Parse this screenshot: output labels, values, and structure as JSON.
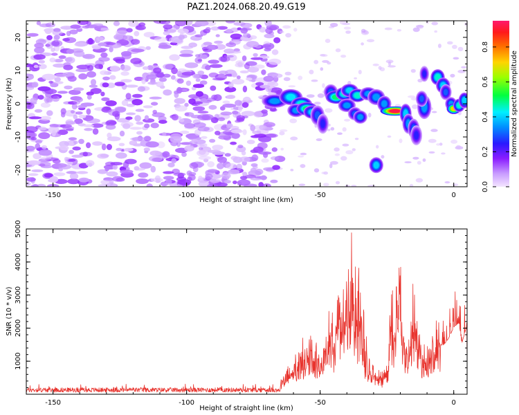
{
  "title": "PAZ1.2024.068.20.49.G19",
  "chart_data": [
    {
      "type": "heatmap",
      "xlabel": "Height of straight line (km)",
      "ylabel": "Frequency (Hz)",
      "xlim": [
        -160,
        5
      ],
      "ylim": [
        -25,
        25
      ],
      "xticks": [
        -150,
        -100,
        -50,
        0
      ],
      "yticks": [
        -20,
        -10,
        0,
        10,
        20
      ],
      "colorbar": {
        "label": "Normalized spectral amplitude",
        "ticks": [
          "0.0",
          "0.2",
          "0.4",
          "0.6",
          "0.8"
        ],
        "range": [
          0,
          0.95
        ],
        "colormap": "gist_rainbow_r"
      },
      "features": [
        {
          "x": -67,
          "y": 0.8,
          "amplitude": 0.35,
          "sx": 2.2,
          "sy": 1.0
        },
        {
          "x": -61,
          "y": 2.0,
          "amplitude": 0.42,
          "sx": 2.0,
          "sy": 1.2
        },
        {
          "x": -57,
          "y": 0.0,
          "amplitude": 0.45,
          "sx": 1.8,
          "sy": 1.0
        },
        {
          "x": -59,
          "y": -2.0,
          "amplitude": 0.35,
          "sx": 1.5,
          "sy": 1.0
        },
        {
          "x": -55,
          "y": -1.5,
          "amplitude": 0.5,
          "sx": 1.8,
          "sy": 1.0
        },
        {
          "x": -53,
          "y": -2.5,
          "amplitude": 0.4,
          "sx": 1.5,
          "sy": 1.0
        },
        {
          "x": -51,
          "y": -3.5,
          "amplitude": 0.3,
          "sx": 1.2,
          "sy": 1.5
        },
        {
          "x": -49,
          "y": -6.0,
          "amplitude": 0.25,
          "sx": 1.0,
          "sy": 1.5
        },
        {
          "x": -46,
          "y": 3.5,
          "amplitude": 0.3,
          "sx": 1.2,
          "sy": 1.2
        },
        {
          "x": -44,
          "y": 2.0,
          "amplitude": 0.5,
          "sx": 1.8,
          "sy": 1.0
        },
        {
          "x": -41,
          "y": 3.0,
          "amplitude": 0.45,
          "sx": 1.5,
          "sy": 1.0
        },
        {
          "x": -39,
          "y": 4.0,
          "amplitude": 0.4,
          "sx": 1.5,
          "sy": 1.0
        },
        {
          "x": -36,
          "y": 2.5,
          "amplitude": 0.45,
          "sx": 1.5,
          "sy": 1.0
        },
        {
          "x": -40,
          "y": -0.5,
          "amplitude": 0.35,
          "sx": 1.5,
          "sy": 1.0
        },
        {
          "x": -37,
          "y": -3.0,
          "amplitude": 0.3,
          "sx": 1.2,
          "sy": 1.0
        },
        {
          "x": -35,
          "y": -4.0,
          "amplitude": 0.35,
          "sx": 1.2,
          "sy": 1.0
        },
        {
          "x": -32,
          "y": 3.0,
          "amplitude": 0.35,
          "sx": 1.5,
          "sy": 1.0
        },
        {
          "x": -29,
          "y": 2.0,
          "amplitude": 0.35,
          "sx": 1.5,
          "sy": 1.2
        },
        {
          "x": -26,
          "y": 0.0,
          "amplitude": 0.35,
          "sx": 1.2,
          "sy": 1.2
        },
        {
          "x": -22,
          "y": -2.2,
          "amplitude": 0.92,
          "sx": 2.5,
          "sy": 0.7
        },
        {
          "x": -18,
          "y": -3.0,
          "amplitude": 0.4,
          "sx": 1.0,
          "sy": 1.5
        },
        {
          "x": -17,
          "y": -6.0,
          "amplitude": 0.35,
          "sx": 1.0,
          "sy": 1.5
        },
        {
          "x": -15,
          "y": -7.5,
          "amplitude": 0.3,
          "sx": 1.0,
          "sy": 1.5
        },
        {
          "x": -14,
          "y": -9.5,
          "amplitude": 0.25,
          "sx": 1.0,
          "sy": 1.5
        },
        {
          "x": -11,
          "y": 9.0,
          "amplitude": 0.25,
          "sx": 0.8,
          "sy": 1.2
        },
        {
          "x": -11,
          "y": -1.0,
          "amplitude": 0.35,
          "sx": 1.2,
          "sy": 1.8
        },
        {
          "x": -12,
          "y": 1.5,
          "amplitude": 0.3,
          "sx": 1.0,
          "sy": 1.2
        },
        {
          "x": -6,
          "y": 8.0,
          "amplitude": 0.45,
          "sx": 1.2,
          "sy": 1.2
        },
        {
          "x": -4,
          "y": 5.5,
          "amplitude": 0.4,
          "sx": 1.2,
          "sy": 1.2
        },
        {
          "x": -3,
          "y": 3.5,
          "amplitude": 0.3,
          "sx": 1.0,
          "sy": 1.2
        },
        {
          "x": -1,
          "y": 0.0,
          "amplitude": 0.35,
          "sx": 1.0,
          "sy": 1.0
        },
        {
          "x": 0,
          "y": -1.5,
          "amplitude": 0.72,
          "sx": 1.2,
          "sy": 0.8
        },
        {
          "x": 2,
          "y": -0.5,
          "amplitude": 0.45,
          "sx": 1.0,
          "sy": 1.0
        },
        {
          "x": 4,
          "y": 1.0,
          "amplitude": 0.4,
          "sx": 1.0,
          "sy": 1.2
        },
        {
          "x": -29,
          "y": -18.5,
          "amplitude": 0.4,
          "sx": 1.2,
          "sy": 1.2
        }
      ]
    },
    {
      "type": "line",
      "xlabel": "Height of straight line (km)",
      "ylabel": "SNR (10 * v/v)",
      "xlim": [
        -160,
        5
      ],
      "ylim": [
        0,
        5000
      ],
      "xticks": [
        -150,
        -100,
        -50,
        0
      ],
      "yticks": [
        1000,
        2000,
        3000,
        4000,
        5000
      ],
      "color": "#e8332d",
      "envelope": [
        [
          -160,
          100
        ],
        [
          -80,
          100
        ],
        [
          -70,
          200
        ],
        [
          -65,
          350
        ],
        [
          -62,
          800
        ],
        [
          -59,
          1200
        ],
        [
          -57,
          1500
        ],
        [
          -55,
          2000
        ],
        [
          -53,
          1600
        ],
        [
          -51,
          1400
        ],
        [
          -49,
          1300
        ],
        [
          -47,
          2500
        ],
        [
          -45,
          2200
        ],
        [
          -43,
          3000
        ],
        [
          -41,
          3200
        ],
        [
          -40,
          4200
        ],
        [
          -39,
          4500
        ],
        [
          -38,
          4800
        ],
        [
          -37,
          4000
        ],
        [
          -36,
          4300
        ],
        [
          -35,
          3000
        ],
        [
          -34,
          2500
        ],
        [
          -33,
          2000
        ],
        [
          -32,
          1300
        ],
        [
          -31,
          900
        ],
        [
          -30,
          800
        ],
        [
          -28,
          700
        ],
        [
          -26,
          750
        ],
        [
          -25,
          900
        ],
        [
          -24,
          2700
        ],
        [
          -22,
          3100
        ],
        [
          -20,
          3900
        ],
        [
          -19,
          2400
        ],
        [
          -18,
          2200
        ],
        [
          -17,
          1800
        ],
        [
          -16,
          2900
        ],
        [
          -15,
          3300
        ],
        [
          -14,
          2800
        ],
        [
          -13,
          2400
        ],
        [
          -12,
          1500
        ],
        [
          -10,
          1300
        ],
        [
          -8,
          1900
        ],
        [
          -6,
          2200
        ],
        [
          -4,
          2100
        ],
        [
          -2,
          2400
        ],
        [
          0,
          2900
        ],
        [
          2,
          3100
        ],
        [
          3,
          2200
        ],
        [
          4,
          2600
        ],
        [
          5,
          3000
        ]
      ]
    }
  ]
}
